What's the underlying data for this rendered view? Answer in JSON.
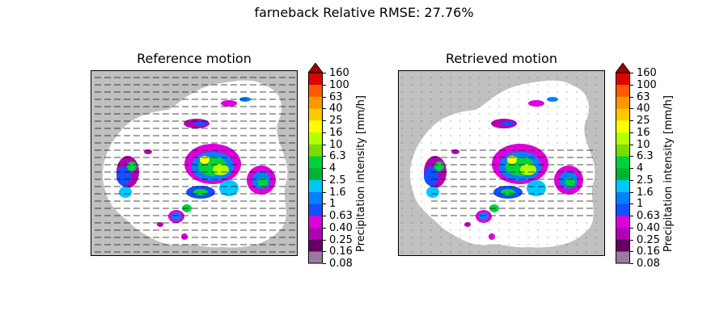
{
  "figure": {
    "suptitle": "farneback Relative RMSE: 27.76%"
  },
  "chart_data": [
    {
      "type": "heatmap",
      "title": "Reference motion",
      "overlay": "motion vectors (quiver), uniform eastward flow over whole domain",
      "background_outside_radar": "#c0c0c0",
      "colorbar": {
        "label": "Precipitation intensity [mm/h]",
        "ticks": [
          "0.08",
          "0.16",
          "0.25",
          "0.40",
          "0.63",
          "1",
          "1.6",
          "2.5",
          "4",
          "6.3",
          "10",
          "16",
          "25",
          "40",
          "63",
          "100",
          "160"
        ],
        "colors": [
          "#9c7aa0",
          "#640064",
          "#b400b4",
          "#dc00dc",
          "#1450ff",
          "#0082ff",
          "#00c8ff",
          "#00b432",
          "#00d23c",
          "#7adc00",
          "#b4ff00",
          "#ffff00",
          "#ffc800",
          "#ff9600",
          "#ff5a00",
          "#e10000"
        ],
        "extend": "max",
        "extend_color": "#a00000"
      },
      "grid": false
    },
    {
      "type": "heatmap",
      "title": "Retrieved motion",
      "overlay": "motion vectors (quiver), eastward arrows concentrated over precipitation area",
      "background_outside_radar": "#c0c0c0",
      "colorbar": {
        "label": "Precipitation intensity [mm/h]",
        "ticks": [
          "0.08",
          "0.16",
          "0.25",
          "0.40",
          "0.63",
          "1",
          "1.6",
          "2.5",
          "4",
          "6.3",
          "10",
          "16",
          "25",
          "40",
          "63",
          "100",
          "160"
        ],
        "colors": [
          "#9c7aa0",
          "#640064",
          "#b400b4",
          "#dc00dc",
          "#1450ff",
          "#0082ff",
          "#00c8ff",
          "#00b432",
          "#00d23c",
          "#7adc00",
          "#b4ff00",
          "#ffff00",
          "#ffc800",
          "#ff9600",
          "#ff5a00",
          "#e10000"
        ],
        "extend": "max",
        "extend_color": "#a00000"
      },
      "grid": false
    }
  ]
}
